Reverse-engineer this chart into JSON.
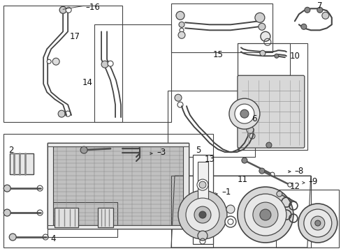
{
  "bg_color": "#ffffff",
  "line_color": "#444444",
  "figsize": [
    4.89,
    3.6
  ],
  "dpi": 100,
  "gray1": "#cccccc",
  "gray2": "#888888",
  "gray3": "#555555",
  "gray_fill": "#e8e8e8",
  "grid_fill": "#b0b0b0"
}
